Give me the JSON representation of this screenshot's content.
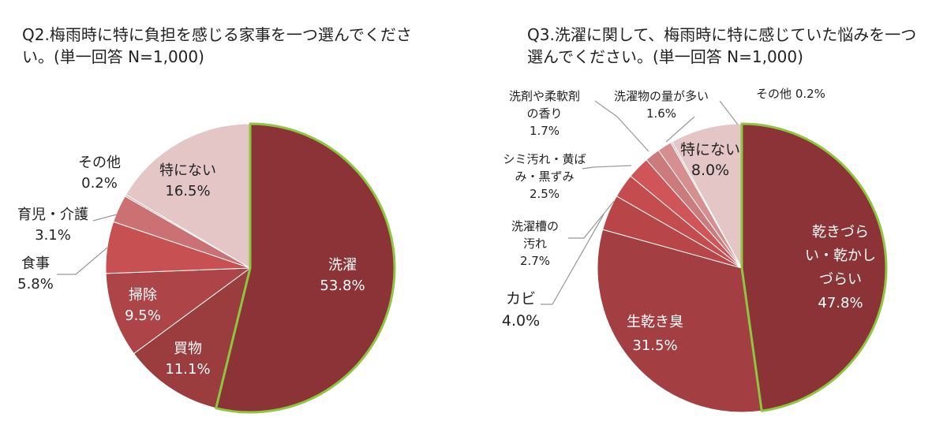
{
  "chart_data": [
    {
      "type": "pie",
      "title": "Q2.梅雨時に特に負担を感じる家事を一つ選んでください。(単一回答 N=1,000)",
      "categories": [
        "洗濯",
        "買物",
        "掃除",
        "食事",
        "育児・介護",
        "その他",
        "特にない"
      ],
      "values": [
        53.8,
        11.1,
        9.5,
        5.8,
        3.1,
        0.2,
        16.5
      ],
      "value_labels": [
        "53.8%",
        "11.1%",
        "9.5%",
        "5.8%",
        "3.1%",
        "0.2%",
        "16.5%"
      ],
      "colors": [
        "#8b3336",
        "#9b3c3f",
        "#ad4548",
        "#c65052",
        "#cc7173",
        "#d9a2a3",
        "#e5c6c6"
      ],
      "highlight": "洗濯",
      "highlight_color": "#8dc63f"
    },
    {
      "type": "pie",
      "title": "Q3.洗濯に関して、梅雨時に特に感じていた悩みを一つ選んでください。(単一回答 N=1,000)",
      "categories": [
        "乾きづらい・乾かしづらい",
        "生乾き臭",
        "カビ",
        "洗濯槽の汚れ",
        "シミ汚れ・黄ばみ・黒ずみ",
        "洗剤や柔軟剤の香り",
        "洗濯物の量が多い",
        "その他",
        "特にない"
      ],
      "values": [
        47.8,
        31.5,
        4.0,
        2.7,
        2.5,
        1.7,
        1.6,
        0.2,
        8.0
      ],
      "value_labels": [
        "47.8%",
        "31.5%",
        "4.0%",
        "2.7%",
        "2.5%",
        "1.7%",
        "1.6%",
        "0.2%",
        "8.0%"
      ],
      "colors": [
        "#8b3336",
        "#a33f42",
        "#b84649",
        "#c44c4f",
        "#d05558",
        "#cc7b7d",
        "#d68e90",
        "#dcb4b5",
        "#e5c6c6"
      ],
      "highlight": "乾きづらい・乾かしづらい",
      "highlight_color": "#8dc63f"
    }
  ],
  "titles": {
    "q2_line1": "Q2.梅雨時に特に負担を感じる家事を一つ選んでくださ",
    "q2_line2": "い。(単一回答 N=1,000)",
    "q3_line1": "Q3.洗濯に関して、梅雨時に特に感じていた悩みを一つ",
    "q3_line2": "選んでください。(単一回答 N=1,000)"
  },
  "labels_q2": [
    {
      "name": "洗濯",
      "value": "53.8%"
    },
    {
      "name": "買物",
      "value": "11.1%"
    },
    {
      "name": "掃除",
      "value": "9.5%"
    },
    {
      "name": "食事",
      "value": "5.8%"
    },
    {
      "name": "育児・介護",
      "value": "3.1%"
    },
    {
      "name": "その他",
      "value": "0.2%"
    },
    {
      "name": "特にない",
      "value": "16.5%"
    }
  ],
  "labels_q3": [
    {
      "lines": [
        "乾きづら",
        "い・乾かし",
        "づらい"
      ],
      "value": "47.8%"
    },
    {
      "lines": [
        "生乾き臭"
      ],
      "value": "31.5%"
    },
    {
      "lines": [
        "カビ"
      ],
      "value": "4.0%"
    },
    {
      "lines": [
        "洗濯槽の",
        "汚れ"
      ],
      "value": "2.7%"
    },
    {
      "lines": [
        "シミ汚れ・黄ば",
        "み・黒ずみ"
      ],
      "value": "2.5%"
    },
    {
      "lines": [
        "洗剤や柔軟剤",
        "の香り"
      ],
      "value": "1.7%"
    },
    {
      "lines": [
        "洗濯物の量が多い"
      ],
      "value": "1.6%"
    },
    {
      "lines": [
        "その他"
      ],
      "value": "0.2%"
    },
    {
      "lines": [
        "特にない"
      ],
      "value": "8.0%"
    }
  ]
}
